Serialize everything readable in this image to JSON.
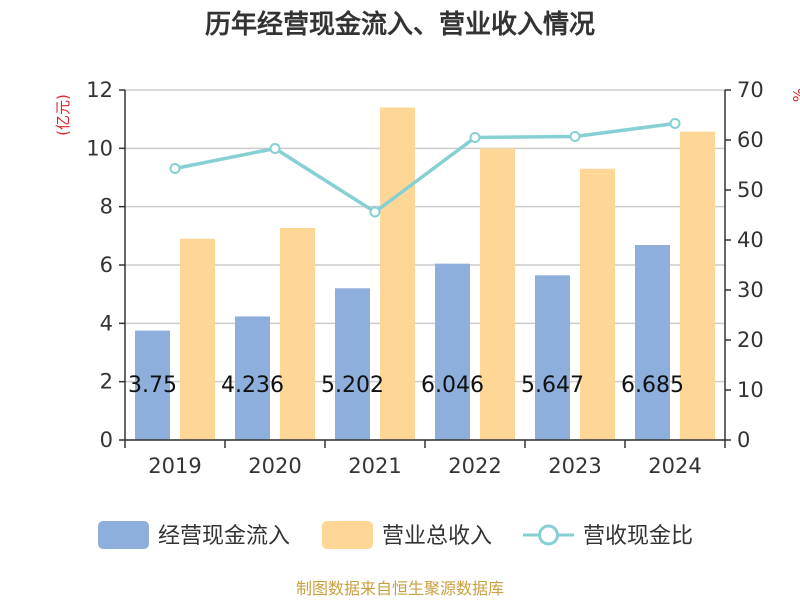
{
  "colors": {
    "cash_inflow": "#8eaedb",
    "revenue": "#fed797",
    "ratio": "#86d0d3",
    "unit_text": "#d7262b",
    "source_text": "#c8a041",
    "grid": "#cccccc",
    "axis": "#333333"
  },
  "chart_data": {
    "type": "bar",
    "title": "历年经营现金流入、营业收入情况",
    "categories": [
      "2019",
      "2020",
      "2021",
      "2022",
      "2023",
      "2024"
    ],
    "y_left": {
      "unit": "(亿元)",
      "ylim": [
        0,
        12
      ],
      "ticks": [
        0,
        2,
        4,
        6,
        8,
        10,
        12
      ]
    },
    "y_right": {
      "unit": "%",
      "ylim": [
        0,
        70
      ],
      "ticks": [
        0,
        10,
        20,
        30,
        40,
        50,
        60,
        70
      ]
    },
    "series": [
      {
        "name": "经营现金流入",
        "type": "bar",
        "axis": "left",
        "values": [
          3.75,
          4.236,
          5.202,
          6.046,
          5.647,
          6.685
        ],
        "labels": [
          "3.75",
          "4.236",
          "5.202",
          "6.046",
          "5.647",
          "6.685"
        ]
      },
      {
        "name": "营业总收入",
        "type": "bar",
        "axis": "left",
        "values": [
          6.9,
          7.27,
          11.4,
          10.0,
          9.3,
          10.57
        ]
      },
      {
        "name": "营收现金比",
        "type": "line",
        "axis": "right",
        "values": [
          54.3,
          58.3,
          45.6,
          60.5,
          60.7,
          63.3
        ]
      }
    ],
    "grid": true,
    "legend": "bottom"
  },
  "source": "制图数据来自恒生聚源数据库"
}
